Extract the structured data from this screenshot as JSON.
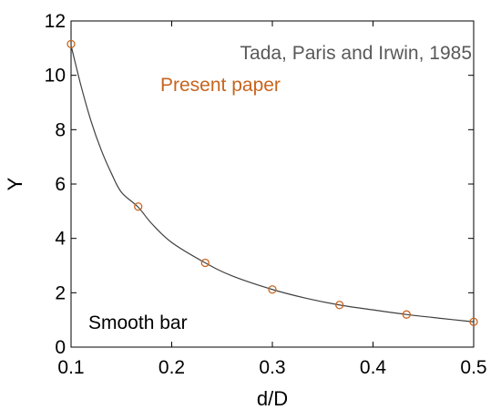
{
  "chart_data": {
    "type": "line",
    "xlabel": "d/D",
    "ylabel": "Y",
    "xlim": [
      0.1,
      0.5
    ],
    "ylim": [
      0,
      12
    ],
    "x_ticks": [
      0.1,
      0.2,
      0.3,
      0.4,
      0.5
    ],
    "x_tick_labels": [
      "0.1",
      "0.2",
      "0.3",
      "0.4",
      "0.5"
    ],
    "y_ticks": [
      0,
      2,
      4,
      6,
      8,
      10,
      12
    ],
    "y_tick_labels": [
      "0",
      "2",
      "4",
      "6",
      "8",
      "10",
      "12"
    ],
    "grid": false,
    "legend_position": "top-right",
    "annotation": "Smooth bar",
    "series": [
      {
        "name": "Tada, Paris and Irwin, 1985",
        "style": "line",
        "color": "#404040",
        "x": [
          0.1,
          0.11,
          0.12,
          0.13,
          0.14,
          0.15,
          0.1667,
          0.18,
          0.2,
          0.2333,
          0.26,
          0.3,
          0.3333,
          0.3667,
          0.4,
          0.4333,
          0.4667,
          0.5
        ],
        "y": [
          11.1,
          9.6,
          8.3,
          7.25,
          6.4,
          5.7,
          5.15,
          4.55,
          3.85,
          3.1,
          2.62,
          2.12,
          1.8,
          1.55,
          1.37,
          1.2,
          1.06,
          0.93
        ]
      },
      {
        "name": "Present paper",
        "style": "markers",
        "color": "#c8641e",
        "x": [
          0.1,
          0.1667,
          0.2333,
          0.3,
          0.3667,
          0.4333,
          0.5
        ],
        "y": [
          11.15,
          5.17,
          3.1,
          2.12,
          1.55,
          1.2,
          0.93
        ]
      }
    ]
  }
}
